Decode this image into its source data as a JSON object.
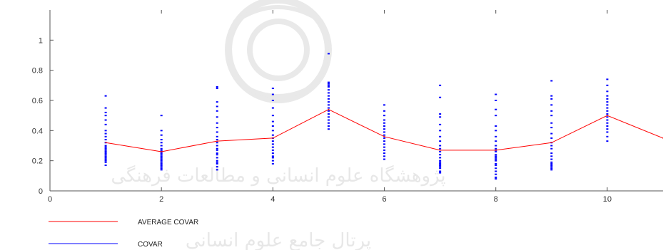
{
  "chart_data": {
    "type": "scatter",
    "title": "",
    "xlabel": "",
    "ylabel": "",
    "xlim": [
      0,
      11
    ],
    "ylim": [
      0,
      1.2
    ],
    "x_ticks": [
      0,
      2,
      4,
      6,
      8,
      10
    ],
    "y_ticks": [
      0,
      0.2,
      0.4,
      0.6,
      0.8,
      1
    ],
    "grid": false,
    "legend_position": "bottom-left",
    "series": [
      {
        "name": "AVERAGE COVAR",
        "kind": "line",
        "color": "#ff0000",
        "x": [
          1,
          2,
          3,
          4,
          5,
          6,
          7,
          8,
          9,
          10,
          11
        ],
        "y": [
          0.32,
          0.26,
          0.33,
          0.35,
          0.54,
          0.36,
          0.27,
          0.27,
          0.32,
          0.5,
          0.35
        ]
      },
      {
        "name": "COVAR",
        "kind": "points",
        "color": "#0000ff",
        "points_by_x": [
          {
            "x": 1,
            "y": [
              0.17,
              0.19,
              0.2,
              0.21,
              0.22,
              0.23,
              0.24,
              0.25,
              0.26,
              0.27,
              0.28,
              0.29,
              0.3,
              0.32,
              0.34,
              0.36,
              0.38,
              0.4,
              0.44,
              0.47,
              0.5,
              0.52,
              0.55,
              0.63
            ]
          },
          {
            "x": 2,
            "y": [
              0.14,
              0.15,
              0.16,
              0.17,
              0.18,
              0.19,
              0.2,
              0.21,
              0.22,
              0.23,
              0.24,
              0.25,
              0.26,
              0.27,
              0.28,
              0.3,
              0.32,
              0.34,
              0.37,
              0.4,
              0.5
            ]
          },
          {
            "x": 3,
            "y": [
              0.14,
              0.16,
              0.18,
              0.19,
              0.2,
              0.22,
              0.24,
              0.25,
              0.27,
              0.28,
              0.3,
              0.32,
              0.34,
              0.36,
              0.39,
              0.42,
              0.45,
              0.49,
              0.53,
              0.56,
              0.59,
              0.68,
              0.69
            ]
          },
          {
            "x": 4,
            "y": [
              0.18,
              0.2,
              0.22,
              0.23,
              0.25,
              0.27,
              0.29,
              0.31,
              0.33,
              0.35,
              0.37,
              0.4,
              0.43,
              0.46,
              0.5,
              0.55,
              0.6,
              0.64,
              0.68
            ]
          },
          {
            "x": 5,
            "y": [
              0.41,
              0.43,
              0.45,
              0.47,
              0.49,
              0.51,
              0.53,
              0.55,
              0.57,
              0.59,
              0.61,
              0.63,
              0.65,
              0.67,
              0.69,
              0.7,
              0.71,
              0.72,
              0.91
            ]
          },
          {
            "x": 6,
            "y": [
              0.21,
              0.23,
              0.25,
              0.27,
              0.29,
              0.31,
              0.33,
              0.35,
              0.37,
              0.39,
              0.41,
              0.43,
              0.45,
              0.47,
              0.5,
              0.53,
              0.57
            ]
          },
          {
            "x": 7,
            "y": [
              0.12,
              0.13,
              0.15,
              0.16,
              0.17,
              0.18,
              0.19,
              0.2,
              0.22,
              0.24,
              0.26,
              0.28,
              0.3,
              0.33,
              0.36,
              0.4,
              0.44,
              0.49,
              0.51,
              0.62,
              0.7
            ]
          },
          {
            "x": 8,
            "y": [
              0.08,
              0.09,
              0.11,
              0.13,
              0.15,
              0.17,
              0.18,
              0.2,
              0.21,
              0.22,
              0.23,
              0.24,
              0.26,
              0.27,
              0.28,
              0.3,
              0.33,
              0.36,
              0.4,
              0.43,
              0.5,
              0.54,
              0.6,
              0.64
            ]
          },
          {
            "x": 9,
            "y": [
              0.14,
              0.15,
              0.16,
              0.17,
              0.18,
              0.19,
              0.21,
              0.23,
              0.25,
              0.28,
              0.3,
              0.32,
              0.35,
              0.38,
              0.42,
              0.45,
              0.5,
              0.53,
              0.57,
              0.61,
              0.63,
              0.73
            ]
          },
          {
            "x": 10,
            "y": [
              0.33,
              0.36,
              0.39,
              0.41,
              0.43,
              0.45,
              0.47,
              0.49,
              0.51,
              0.53,
              0.55,
              0.57,
              0.59,
              0.61,
              0.63,
              0.66,
              0.7,
              0.74
            ]
          }
        ]
      }
    ]
  }
}
